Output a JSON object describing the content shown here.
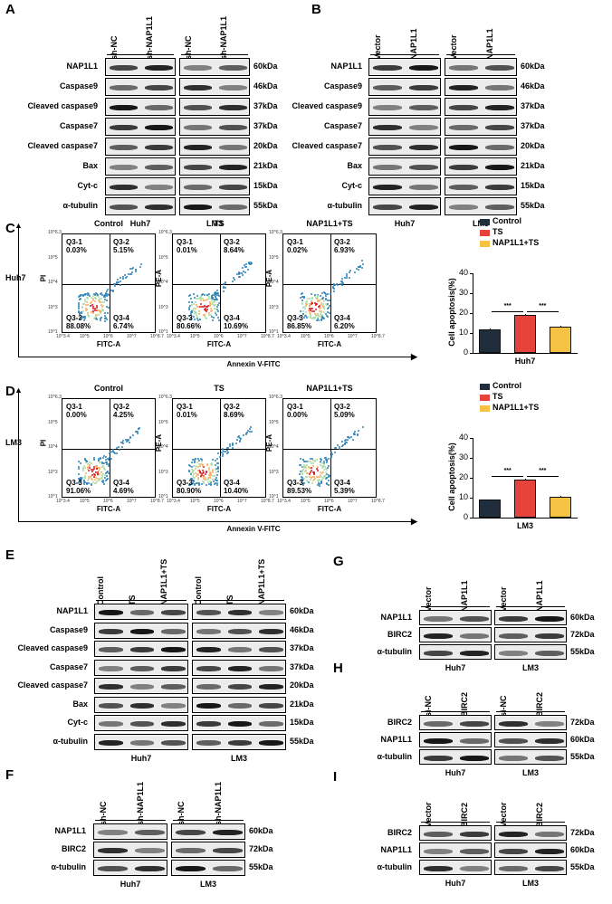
{
  "panel_letters": {
    "A": "A",
    "B": "B",
    "C": "C",
    "D": "D",
    "E": "E",
    "F": "F",
    "G": "G",
    "H": "H",
    "I": "I"
  },
  "panelA": {
    "columns": [
      "sh-NC",
      "sh-NAP1L1",
      "sh-NC",
      "sh-NAP1L1"
    ],
    "rows": [
      "NAP1L1",
      "Caspase9",
      "Cleaved caspase9",
      "Caspase7",
      "Cleaved caspase7",
      "Bax",
      "Cyt-c",
      "α-tubulin"
    ],
    "kda": [
      "60kDa",
      "46kDa",
      "37kDa",
      "37kDa",
      "20kDa",
      "21kDa",
      "15kDa",
      "55kDa"
    ],
    "cells": [
      "Huh7",
      "LM3"
    ]
  },
  "panelB": {
    "columns": [
      "Vector",
      "NAP1L1",
      "Vector",
      "NAP1L1"
    ],
    "rows": [
      "NAP1L1",
      "Caspase9",
      "Cleaved caspase9",
      "Caspase7",
      "Cleaved caspase7",
      "Bax",
      "Cyt-c",
      "α-tubulin"
    ],
    "kda": [
      "60kDa",
      "46kDa",
      "37kDa",
      "37kDa",
      "20kDa",
      "21kDa",
      "15kDa",
      "55kDa"
    ],
    "cells": [
      "Huh7",
      "LM3"
    ]
  },
  "panelC": {
    "cell_line": "Huh7",
    "xaxis_title": "Annexin V-FITC",
    "plots": [
      {
        "title": "Control",
        "q1": "Q3-1",
        "q1v": "0.03%",
        "q2": "Q3-2",
        "q2v": "5.15%",
        "q3": "Q3-3",
        "q3v": "88.08%",
        "q4": "Q3-4",
        "q4v": "6.74%",
        "ylabel": "PI",
        "xlabel": "FITC-A"
      },
      {
        "title": "TS",
        "q1": "Q3-1",
        "q1v": "0.01%",
        "q2": "Q3-2",
        "q2v": "8.64%",
        "q3": "Q3-3",
        "q3v": "80.66%",
        "q4": "Q3-4",
        "q4v": "10.69%",
        "ylabel": "PE-A",
        "xlabel": "FITC-A"
      },
      {
        "title": "NAP1L1+TS",
        "q1": "Q3-1",
        "q1v": "0.02%",
        "q2": "Q3-2",
        "q2v": "6.93%",
        "q3": "Q3-3",
        "q3v": "86.85%",
        "q4": "Q3-4",
        "q4v": "6.20%",
        "ylabel": "PE-A",
        "xlabel": "FITC-A"
      }
    ],
    "ticks_x": [
      "10^3.4",
      "10^5",
      "10^6",
      "10^7",
      "10^8.7"
    ],
    "ticks_y": [
      "10^1",
      "10^3",
      "10^4",
      "10^5",
      "10^6.3"
    ]
  },
  "panelD": {
    "cell_line": "LM3",
    "xaxis_title": "Annexin V-FITC",
    "plots": [
      {
        "title": "Control",
        "q1": "Q3-1",
        "q1v": "0.00%",
        "q2": "Q3-2",
        "q2v": "4.25%",
        "q3": "Q3-3",
        "q3v": "91.06%",
        "q4": "Q3-4",
        "q4v": "4.69%",
        "ylabel": "PI",
        "xlabel": "FITC-A"
      },
      {
        "title": "TS",
        "q1": "Q3-1",
        "q1v": "0.01%",
        "q2": "Q3-2",
        "q2v": "8.69%",
        "q3": "Q3-3",
        "q3v": "80.90%",
        "q4": "Q3-4",
        "q4v": "10.40%",
        "ylabel": "PE-A",
        "xlabel": "FITC-A"
      },
      {
        "title": "NAP1L1+TS",
        "q1": "Q3-1",
        "q1v": "0.00%",
        "q2": "Q3-2",
        "q2v": "5.09%",
        "q3": "Q3-3",
        "q3v": "89.53%",
        "q4": "Q3-4",
        "q4v": "5.39%",
        "ylabel": "PE-A",
        "xlabel": "FITC-A"
      }
    ]
  },
  "panelE": {
    "columns": [
      "Control",
      "TS",
      "NAP1L1+TS",
      "Control",
      "TS",
      "NAP1L1+TS"
    ],
    "rows": [
      "NAP1L1",
      "Caspase9",
      "Cleaved caspase9",
      "Caspase7",
      "Cleaved caspase7",
      "Bax",
      "Cyt-c",
      "α-tubulin"
    ],
    "kda": [
      "60kDa",
      "46kDa",
      "37kDa",
      "37kDa",
      "20kDa",
      "21kDa",
      "15kDa",
      "55kDa"
    ],
    "cells": [
      "Huh7",
      "LM3"
    ]
  },
  "panelF": {
    "columns": [
      "sh-NC",
      "sh-NAP1L1",
      "sh-NC",
      "sh-NAP1L1"
    ],
    "rows": [
      "NAP1L1",
      "BIRC2",
      "α-tubulin"
    ],
    "kda": [
      "60kDa",
      "72kDa",
      "55kDa"
    ],
    "cells": [
      "Huh7",
      "LM3"
    ]
  },
  "panelG": {
    "columns": [
      "Vector",
      "NAP1L1",
      "Vector",
      "NAP1L1"
    ],
    "rows": [
      "NAP1L1",
      "BIRC2",
      "α-tubulin"
    ],
    "kda": [
      "60kDa",
      "72kDa",
      "55kDa"
    ],
    "cells": [
      "Huh7",
      "LM3"
    ]
  },
  "panelH": {
    "columns": [
      "si-NC",
      "BIRC2",
      "si-NC",
      "BIRC2"
    ],
    "rows": [
      "BIRC2",
      "NAP1L1",
      "α-tubulin"
    ],
    "kda": [
      "72kDa",
      "60kDa",
      "55kDa"
    ],
    "cells": [
      "Huh7",
      "LM3"
    ]
  },
  "panelI": {
    "columns": [
      "Vector",
      "BIRC2",
      "Vector",
      "BIRC2"
    ],
    "rows": [
      "BIRC2",
      "NAP1L1",
      "α-tubulin"
    ],
    "kda": [
      "72kDa",
      "60kDa",
      "55kDa"
    ],
    "cells": [
      "Huh7",
      "LM3"
    ]
  },
  "colors": {
    "control": "#1f2d3d",
    "ts": "#e8433a",
    "nap_ts": "#f6c244"
  },
  "chart_data": [
    {
      "type": "bar",
      "title": "",
      "categories": [
        "Control",
        "TS",
        "NAP1L1+TS"
      ],
      "values": [
        12,
        19,
        13
      ],
      "errors": [
        0.4,
        0.5,
        0.5
      ],
      "ylabel": "Cell apoptosis(%)",
      "xlabel": "Huh7",
      "ylim": [
        0,
        40
      ],
      "yticks": [
        "0",
        "10",
        "20",
        "30",
        "40"
      ],
      "legend": [
        "Control",
        "TS",
        "NAP1L1+TS"
      ],
      "significance": [
        "***",
        "***"
      ]
    },
    {
      "type": "bar",
      "title": "",
      "categories": [
        "Control",
        "TS",
        "NAP1L1+TS"
      ],
      "values": [
        9,
        19,
        10.5
      ],
      "errors": [
        0.3,
        0.4,
        0.4
      ],
      "ylabel": "Cell apoptosis(%)",
      "xlabel": "LM3",
      "ylim": [
        0,
        40
      ],
      "yticks": [
        "0",
        "10",
        "20",
        "30",
        "40"
      ],
      "legend": [
        "Control",
        "TS",
        "NAP1L1+TS"
      ],
      "significance": [
        "***",
        "***"
      ]
    }
  ]
}
